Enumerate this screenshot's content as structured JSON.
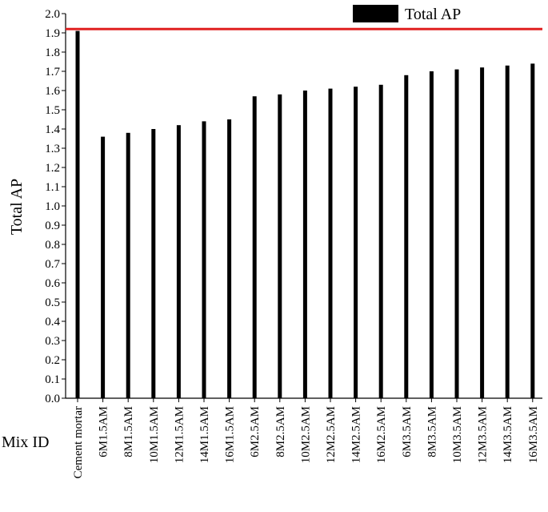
{
  "chart_data": {
    "type": "bar",
    "xlabel": "Mix ID",
    "ylabel": "Total AP",
    "ylim": [
      0.0,
      2.0
    ],
    "ytick_step": 0.1,
    "grid": false,
    "legend_position": "top-right",
    "categories": [
      "Cement mortar",
      "6M1.5AM",
      "8M1.5AM",
      "10M1.5AM",
      "12M1.5AM",
      "14M1.5AM",
      "16M1.5AM",
      "6M2.5AM",
      "8M2.5AM",
      "10M2.5AM",
      "12M2.5AM",
      "14M2.5AM",
      "16M2.5AM",
      "6M3.5AM",
      "8M3.5AM",
      "10M3.5AM",
      "12M3.5AM",
      "14M3.5AM",
      "16M3.5AM"
    ],
    "series": [
      {
        "name": "Total AP",
        "color": "#000000",
        "values": [
          1.91,
          1.36,
          1.38,
          1.4,
          1.42,
          1.44,
          1.45,
          1.57,
          1.58,
          1.6,
          1.61,
          1.62,
          1.63,
          1.68,
          1.7,
          1.71,
          1.72,
          1.73,
          1.74
        ]
      }
    ],
    "reference_line": {
      "value": 1.92,
      "color": "#e02020"
    }
  }
}
